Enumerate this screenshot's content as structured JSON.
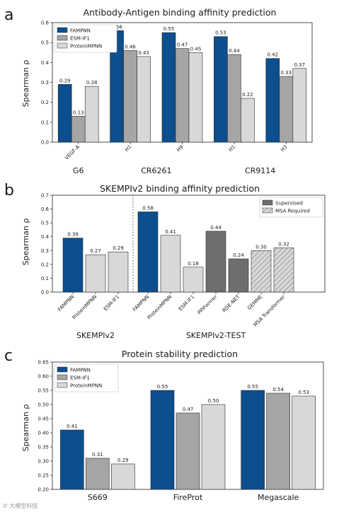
{
  "colors": {
    "FAMPNN": "#0c4e8e",
    "ESM-IF1": "#a5a5a5",
    "ProteinMPNN": "#d8d8d8",
    "Supervised": "#6e6e6e",
    "MSA Required": "#d8d8d8"
  },
  "watermark": "✆ 大模型科技",
  "chart_data": [
    {
      "type": "bar",
      "panel": "a",
      "title": "Antibody-Antigen binding affinity prediction",
      "ylabel": "Spearman ρ",
      "ylim": [
        0,
        0.6
      ],
      "yticks": [
        0.0,
        0.1,
        0.2,
        0.3,
        0.4,
        0.5,
        0.6
      ],
      "ytick_labels": [
        "0.0",
        "0.1",
        "0.2",
        "0.3",
        "0.4",
        "0.5",
        "0.6"
      ],
      "legend": [
        "FAMPNN",
        "ESM-IF1",
        "ProteinMPNN"
      ],
      "legend_position": "top-left",
      "categories": [
        "VEGF-A",
        "H1",
        "H9",
        "H1",
        "H3"
      ],
      "groups": [
        {
          "label": "G6",
          "categories": [
            "VEGF-A"
          ]
        },
        {
          "label": "CR6261",
          "categories": [
            "H1",
            "H9"
          ]
        },
        {
          "label": "CR9114",
          "categories": [
            "H1",
            "H3"
          ]
        }
      ],
      "series": [
        {
          "name": "FAMPNN",
          "values": [
            0.29,
            0.56,
            0.55,
            0.53,
            0.42
          ],
          "labels": [
            "0.29",
            "0.56",
            "0.55",
            "0.53",
            "0.42"
          ]
        },
        {
          "name": "ESM-IF1",
          "values": [
            0.13,
            0.46,
            0.47,
            0.44,
            0.33
          ],
          "labels": [
            "0.13",
            "0.46",
            "0.47",
            "0.44",
            "0.33"
          ]
        },
        {
          "name": "ProteinMPNN",
          "values": [
            0.28,
            0.43,
            0.45,
            0.22,
            0.37
          ],
          "labels": [
            "0.28",
            "0.43",
            "0.45",
            "0.22",
            "0.37"
          ]
        }
      ]
    },
    {
      "type": "bar",
      "panel": "b",
      "title": "SKEMPIv2 binding affinity prediction",
      "ylabel": "Spearman ρ",
      "ylim": [
        0,
        0.7
      ],
      "yticks": [
        0.0,
        0.1,
        0.2,
        0.3,
        0.4,
        0.5,
        0.6,
        0.7
      ],
      "ytick_labels": [
        "0.0",
        "0.1",
        "0.2",
        "0.3",
        "0.4",
        "0.5",
        "0.6",
        "0.7"
      ],
      "legend": [
        "Supervised",
        "MSA Required"
      ],
      "legend_position": "top-right",
      "groups": [
        {
          "label": "SKEMPIv2",
          "bars": [
            {
              "name": "FAMPNN",
              "value": 0.39,
              "label": "0.39",
              "kind": "FAMPNN"
            },
            {
              "name": "ProteinMPNN",
              "value": 0.27,
              "label": "0.27",
              "kind": "ProteinMPNN"
            },
            {
              "name": "ESM-IF1",
              "value": 0.29,
              "label": "0.29",
              "kind": "ProteinMPNN"
            }
          ]
        },
        {
          "label": "SKEMPIv2-TEST",
          "bars": [
            {
              "name": "FAMPNN",
              "value": 0.58,
              "label": "0.58",
              "kind": "FAMPNN"
            },
            {
              "name": "ProteinMPNN",
              "value": 0.41,
              "label": "0.41",
              "kind": "ProteinMPNN"
            },
            {
              "name": "ESM-IF1",
              "value": 0.18,
              "label": "0.18",
              "kind": "ProteinMPNN"
            },
            {
              "name": "PPIFormer",
              "value": 0.44,
              "label": "0.44",
              "kind": "Supervised"
            },
            {
              "name": "RDE-NET",
              "value": 0.24,
              "label": "0.24",
              "kind": "Supervised"
            },
            {
              "name": "GEMME",
              "value": 0.3,
              "label": "0.30",
              "kind": "MSA Required"
            },
            {
              "name": "MSA Transformer",
              "value": 0.32,
              "label": "0.32",
              "kind": "MSA Required"
            }
          ]
        }
      ]
    },
    {
      "type": "bar",
      "panel": "c",
      "title": "Protein stability prediction",
      "ylabel": "Spearman ρ",
      "ylim": [
        0.2,
        0.65
      ],
      "yticks": [
        0.2,
        0.25,
        0.3,
        0.35,
        0.4,
        0.45,
        0.5,
        0.55,
        0.6,
        0.65
      ],
      "ytick_labels": [
        "0.20",
        "0.25",
        "0.30",
        "0.35",
        "0.40",
        "0.45",
        "0.50",
        "0.55",
        "0.60",
        "0.65"
      ],
      "legend": [
        "FAMPNN",
        "ESM-IF1",
        "ProteinMPNN"
      ],
      "legend_position": "top-left",
      "categories": [
        "S669",
        "FireProt",
        "Megascale"
      ],
      "series": [
        {
          "name": "FAMPNN",
          "values": [
            0.41,
            0.55,
            0.55
          ],
          "labels": [
            "0.41",
            "0.55",
            "0.55"
          ]
        },
        {
          "name": "ESM-IF1",
          "values": [
            0.31,
            0.47,
            0.54
          ],
          "labels": [
            "0.31",
            "0.47",
            "0.54"
          ]
        },
        {
          "name": "ProteinMPNN",
          "values": [
            0.29,
            0.5,
            0.53
          ],
          "labels": [
            "0.29",
            "0.50",
            "0.53"
          ]
        }
      ]
    }
  ]
}
